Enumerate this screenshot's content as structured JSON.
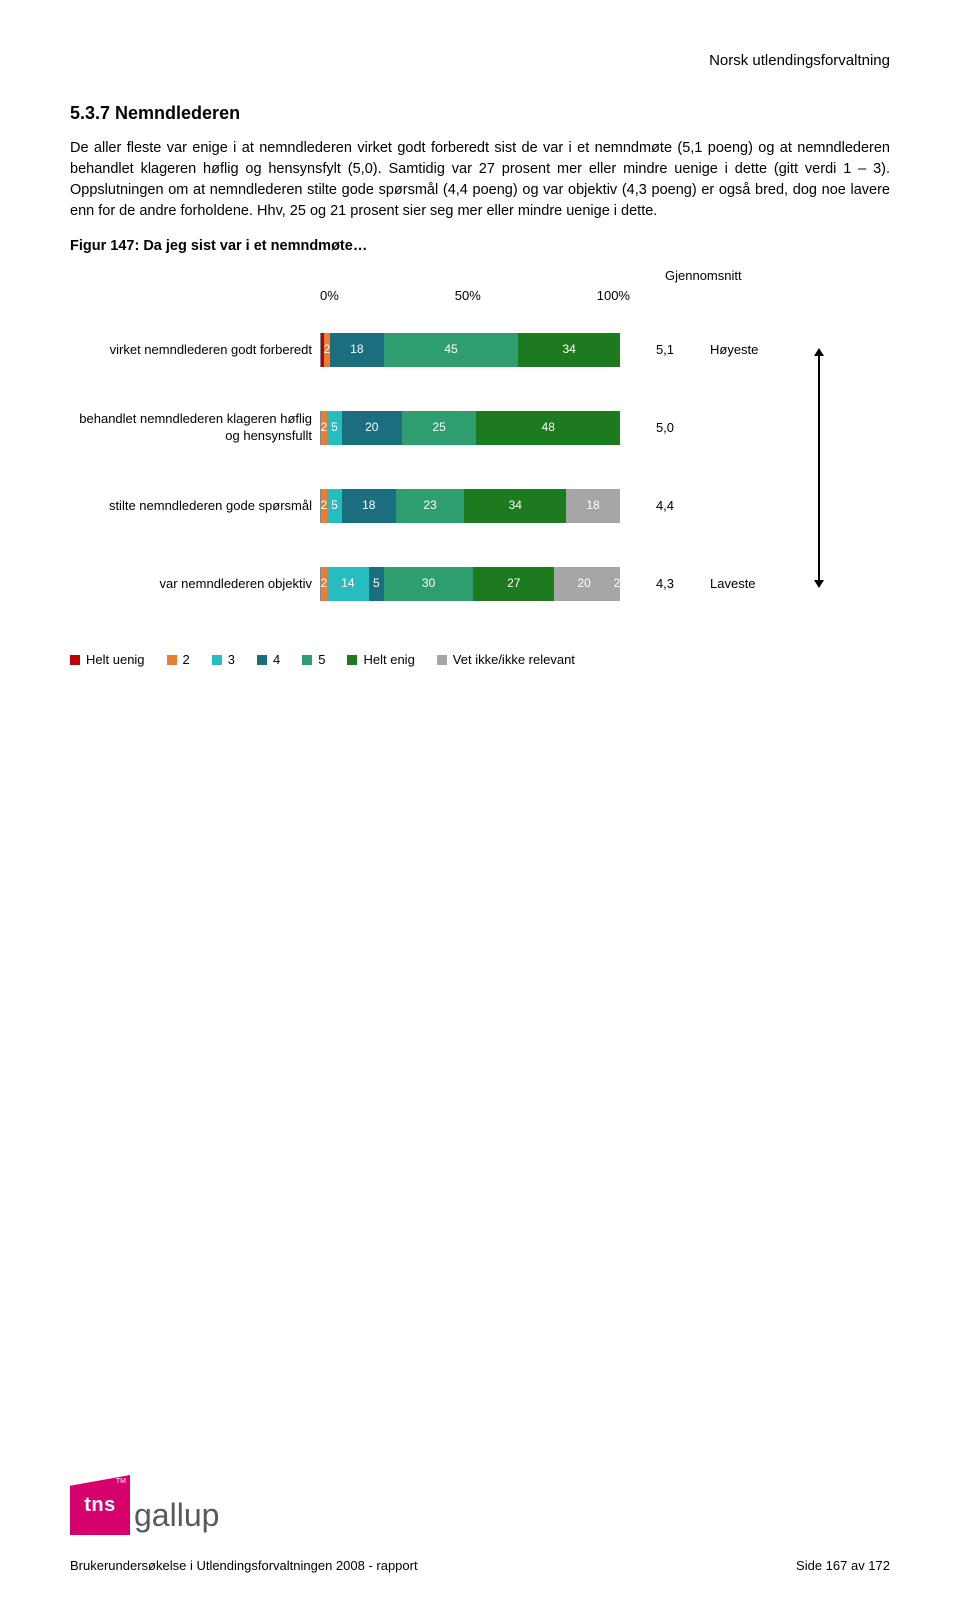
{
  "header": {
    "org": "Norsk utlendingsforvaltning"
  },
  "section": {
    "number_title": "5.3.7 Nemndlederen",
    "paragraph": "De aller fleste var enige i at nemndlederen virket godt forberedt sist de var i et nemndmøte (5,1 poeng) og at nemndlederen behandlet klageren høflig og hensynsfylt (5,0). Samtidig var 27 prosent mer eller mindre uenige i dette (gitt verdi 1 – 3). Oppslutningen om at nemndlederen stilte gode spørsmål (4,4 poeng) og var objektiv (4,3 poeng) er også bred, dog noe lavere enn for de andre forholdene. Hhv, 25 og 21 prosent sier seg mer eller mindre uenige i dette."
  },
  "figure": {
    "title": "Figur 147: Da jeg sist var i et nemndmøte…",
    "avg_header": "Gjennomsnitt",
    "axis_ticks": [
      "0%",
      "50%",
      "100%"
    ],
    "side_high": "Høyeste",
    "side_low": "Laveste",
    "colors": {
      "helt_uenig": "#c00000",
      "v2": "#ed7d31",
      "v3": "#27bdbe",
      "v4": "#1a6e7e",
      "v5": "#2f9e6e",
      "helt_enig": "#1e7a1e",
      "vet_ikke": "#a6a6a6"
    },
    "rows": [
      {
        "label": "virket nemndlederen godt forberedt",
        "segments": [
          {
            "k": "helt_uenig",
            "v": 1,
            "t": ""
          },
          {
            "k": "v2",
            "v": 2,
            "t": "2"
          },
          {
            "k": "v3",
            "v": 0,
            "t": ""
          },
          {
            "k": "v4",
            "v": 18,
            "t": "18"
          },
          {
            "k": "v5",
            "v": 45,
            "t": "45"
          },
          {
            "k": "helt_enig",
            "v": 34,
            "t": "34"
          }
        ],
        "avg": "5,1",
        "side": "Høyeste"
      },
      {
        "label": "behandlet nemndlederen klageren høflig og hensynsfullt",
        "segments": [
          {
            "k": "helt_uenig",
            "v": 0,
            "t": ""
          },
          {
            "k": "v2",
            "v": 2,
            "t": "2"
          },
          {
            "k": "v3",
            "v": 5,
            "t": "5"
          },
          {
            "k": "v4",
            "v": 20,
            "t": "20"
          },
          {
            "k": "v5",
            "v": 25,
            "t": "25"
          },
          {
            "k": "helt_enig",
            "v": 48,
            "t": "48"
          }
        ],
        "avg": "5,0",
        "side": ""
      },
      {
        "label": "stilte nemndlederen gode spørsmål",
        "segments": [
          {
            "k": "helt_uenig",
            "v": 0,
            "t": ""
          },
          {
            "k": "v2",
            "v": 2,
            "t": "2"
          },
          {
            "k": "v3",
            "v": 5,
            "t": "5"
          },
          {
            "k": "v4",
            "v": 18,
            "t": "18"
          },
          {
            "k": "v5",
            "v": 23,
            "t": "23"
          },
          {
            "k": "helt_enig",
            "v": 34,
            "t": "34"
          },
          {
            "k": "vet_ikke",
            "v": 18,
            "t": "18"
          }
        ],
        "avg": "4,4",
        "side": ""
      },
      {
        "label": "var nemndlederen objektiv",
        "segments": [
          {
            "k": "helt_uenig",
            "v": 0,
            "t": ""
          },
          {
            "k": "v2",
            "v": 2,
            "t": "2"
          },
          {
            "k": "v3",
            "v": 14,
            "t": "14"
          },
          {
            "k": "v4",
            "v": 5,
            "t": "5"
          },
          {
            "k": "v5",
            "v": 30,
            "t": "30"
          },
          {
            "k": "helt_enig",
            "v": 27,
            "t": "27"
          },
          {
            "k": "vet_ikke",
            "v": 20,
            "t": "20"
          },
          {
            "k": "extra",
            "v": 2,
            "t": "2"
          }
        ],
        "avg": "4,3",
        "side": "Laveste"
      }
    ],
    "legend": [
      {
        "k": "helt_uenig",
        "label": "Helt uenig"
      },
      {
        "k": "v2",
        "label": "2"
      },
      {
        "k": "v3",
        "label": "3"
      },
      {
        "k": "v4",
        "label": "4"
      },
      {
        "k": "v5",
        "label": "5"
      },
      {
        "k": "helt_enig",
        "label": "Helt enig"
      },
      {
        "k": "vet_ikke",
        "label": "Vet ikke/ikke relevant"
      }
    ]
  },
  "logo": {
    "badge": "tns",
    "word": "gallup",
    "tm": "TM"
  },
  "footer": {
    "left": "Brukerundersøkelse i Utlendingsforvaltningen 2008 - rapport",
    "right": "Side 167 av 172"
  }
}
